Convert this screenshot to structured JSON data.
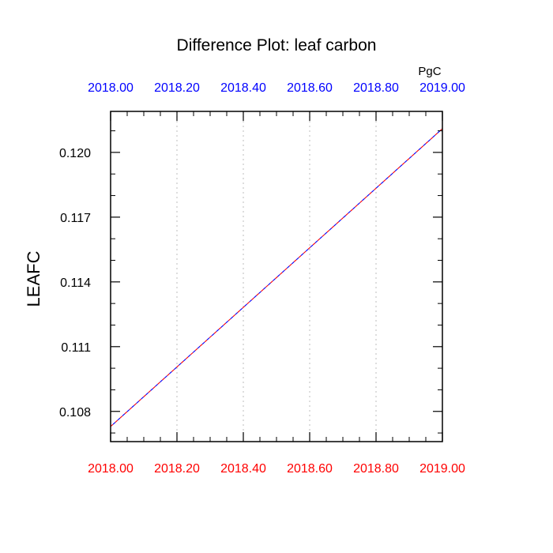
{
  "chart_data": {
    "type": "line",
    "title": "Difference Plot: leaf carbon",
    "ylabel": "LEAFC",
    "units_label": "PgC",
    "xlim": [
      2018.0,
      2019.0
    ],
    "ylim": [
      0.1066,
      0.1219
    ],
    "x_ticks": [
      2018.0,
      2018.2,
      2018.4,
      2018.6,
      2018.8,
      2019.0
    ],
    "x_tick_labels": [
      "2018.00",
      "2018.20",
      "2018.40",
      "2018.60",
      "2018.80",
      "2019.00"
    ],
    "y_ticks": [
      0.108,
      0.111,
      0.114,
      0.117,
      0.12
    ],
    "y_tick_labels": [
      "0.108",
      "0.111",
      "0.114",
      "0.117",
      "0.120"
    ],
    "grid": "vertical dotted",
    "series": [
      {
        "x": [
          2018.0,
          2019.0
        ],
        "y": [
          0.1073,
          0.1211
        ],
        "color": "#ff0000",
        "dash": "dashed"
      },
      {
        "x": [
          2018.0,
          2019.0
        ],
        "y": [
          0.1073,
          0.1211
        ],
        "color": "#0000ff",
        "dash": "dashed"
      }
    ],
    "colors": {
      "top_axis_labels": "#0000ff",
      "bottom_axis_labels": "#ff0000",
      "grid": "#c8c8c8",
      "axes": "#000000"
    }
  }
}
